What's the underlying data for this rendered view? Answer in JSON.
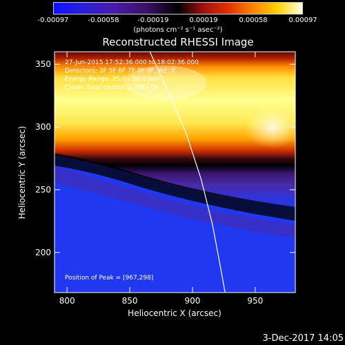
{
  "colorbar": {
    "ticks": [
      "-0.00097",
      "-0.00058",
      "-0.00019",
      "0.00019",
      "0.00058",
      "0.00097"
    ],
    "units": "(photons cm⁻² s⁻¹ asec⁻²)"
  },
  "chart_data": {
    "type": "heatmap",
    "title": "Reconstructed RHESSI Image",
    "xlabel": "Heliocentric X (arcsec)",
    "ylabel": "Heliocentric Y (arcsec)",
    "xlim": [
      790,
      982
    ],
    "ylim": [
      168,
      360
    ],
    "xticks": [
      800,
      850,
      900,
      950
    ],
    "yticks": [
      200,
      250,
      300,
      350
    ],
    "colorbar_range": [
      -0.00097,
      0.00097
    ],
    "annotations": [
      "27-Jun-2015 17:52:36.000 to 18:02:36.000",
      "Detectors: 3F 5F 6F 7F 8F 9F, Att: 0",
      "Energy Range: 25.0 - 50.0 keV",
      "Clean. Total counts: 1.78E+04"
    ],
    "peak_label": "Position of Peak = [967,298]",
    "peak": [
      967,
      298
    ],
    "limb": [
      [
        866,
        360
      ],
      [
        880,
        330
      ],
      [
        895,
        295
      ],
      [
        907,
        258
      ],
      [
        916,
        222
      ],
      [
        922,
        190
      ],
      [
        926,
        168
      ]
    ]
  },
  "footer": {
    "date": "3-Dec-2017 14:05"
  }
}
